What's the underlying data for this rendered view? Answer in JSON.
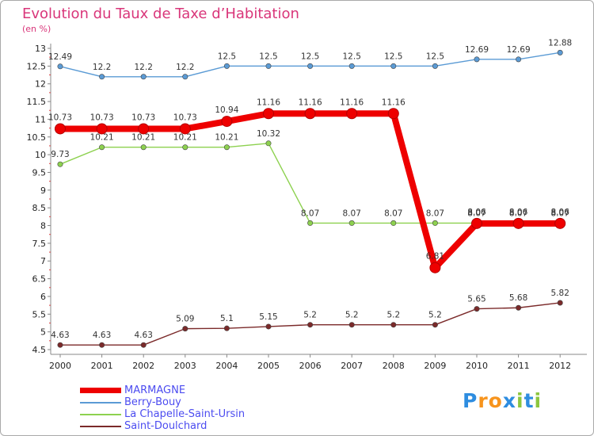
{
  "title": "Evolution du Taux de Taxe d’Habitation",
  "subtitle": "(en %)",
  "logo": {
    "text": "Proxiti",
    "letters": [
      "P",
      "r",
      "o",
      "x",
      "i",
      "t",
      "i"
    ],
    "colors": [
      "#2e8de0",
      "#f7941d",
      "#f7941d",
      "#2e8de0",
      "#8cc63f",
      "#2e8de0",
      "#8cc63f"
    ]
  },
  "chart_data": {
    "type": "line",
    "x": [
      "2000",
      "2001",
      "2002",
      "2003",
      "2004",
      "2005",
      "2006",
      "2007",
      "2008",
      "2009",
      "2010",
      "2011",
      "2012"
    ],
    "ylim": [
      4.5,
      13
    ],
    "yticks": [
      "4.5",
      "5",
      "5.5",
      "6",
      "6.5",
      "7",
      "7.5",
      "8",
      "8.5",
      "9",
      "9.5",
      "10",
      "10.5",
      "11",
      "11.5",
      "12",
      "12.5",
      "13"
    ],
    "grid": false,
    "legend_position": "bottom-left",
    "series": [
      {
        "name": "Berry-Bouy",
        "color": "#5b9bd5",
        "values": [
          12.49,
          12.2,
          12.2,
          12.2,
          12.5,
          12.5,
          12.5,
          12.5,
          12.5,
          12.5,
          12.69,
          12.69,
          12.88
        ],
        "labels": [
          "12.49",
          "12.2",
          "12.2",
          "12.2",
          "12.5",
          "12.5",
          "12.5",
          "12.5",
          "12.5",
          "12.5",
          "12.69",
          "12.69",
          "12.88"
        ]
      },
      {
        "name": "La Chapelle-Saint-Ursin",
        "color": "#8dd14f",
        "values": [
          9.73,
          10.21,
          10.21,
          10.21,
          10.21,
          10.32,
          8.07,
          8.07,
          8.07,
          8.07,
          8.07,
          8.07,
          8.07
        ],
        "labels": [
          "9.73",
          "10.21",
          "10.21",
          "10.21",
          "10.21",
          "10.32",
          "8.07",
          "8.07",
          "8.07",
          "8.07",
          "8.07",
          "8.07",
          "8.07"
        ]
      },
      {
        "name": "Saint-Doulchard",
        "color": "#7b2a2a",
        "values": [
          4.63,
          4.63,
          4.63,
          5.09,
          5.1,
          5.15,
          5.2,
          5.2,
          5.2,
          5.2,
          5.65,
          5.68,
          5.82
        ],
        "labels": [
          "4.63",
          "4.63",
          "4.63",
          "5.09",
          "5.1",
          "5.15",
          "5.2",
          "5.2",
          "5.2",
          "5.2",
          "5.65",
          "5.68",
          "5.82"
        ]
      },
      {
        "name": "MARMAGNE",
        "color": "#ee0000",
        "values": [
          10.73,
          10.73,
          10.73,
          10.73,
          10.94,
          11.16,
          11.16,
          11.16,
          11.16,
          6.81,
          8.06,
          8.06,
          8.06
        ],
        "labels": [
          "10.73",
          "10.73",
          "10.73",
          "10.73",
          "10.94",
          "11.16",
          "11.16",
          "11.16",
          "11.16",
          "6.81",
          "8.06",
          "8.06",
          "8.06"
        ]
      }
    ],
    "legend_order": [
      "MARMAGNE",
      "Berry-Bouy",
      "La Chapelle-Saint-Ursin",
      "Saint-Doulchard"
    ]
  }
}
